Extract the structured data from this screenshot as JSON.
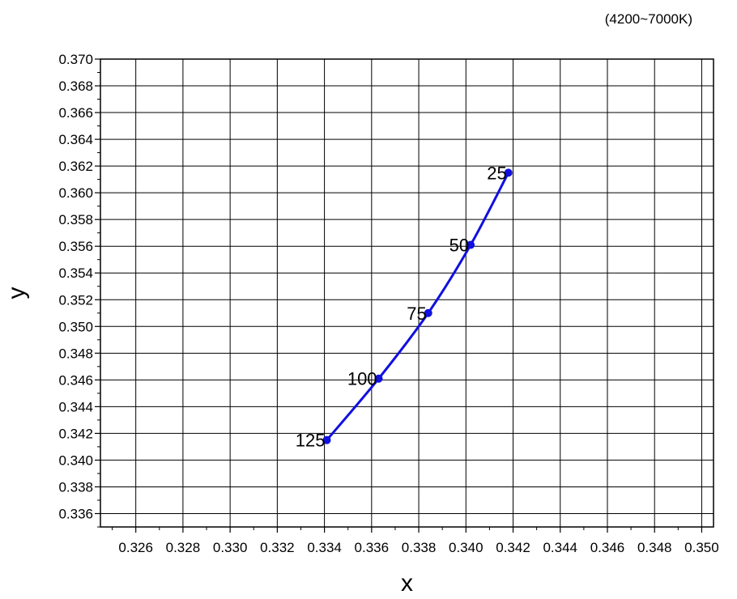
{
  "annotation": "(4200~7000K)",
  "chart_data": {
    "type": "line",
    "xlabel": "x",
    "ylabel": "y",
    "xlim": [
      0.3245,
      0.3505
    ],
    "ylim": [
      0.335,
      0.37
    ],
    "x_ticks": [
      0.326,
      0.328,
      0.33,
      0.332,
      0.334,
      0.336,
      0.338,
      0.34,
      0.342,
      0.344,
      0.346,
      0.348,
      0.35
    ],
    "x_tick_labels": [
      "0.326",
      "0.328",
      "0.330",
      "0.332",
      "0.334",
      "0.336",
      "0.338",
      "0.340",
      "0.342",
      "0.344",
      "0.346",
      "0.348",
      "0.350"
    ],
    "y_ticks": [
      0.336,
      0.338,
      0.34,
      0.342,
      0.344,
      0.346,
      0.348,
      0.35,
      0.352,
      0.354,
      0.356,
      0.358,
      0.36,
      0.362,
      0.364,
      0.366,
      0.368,
      0.37
    ],
    "y_tick_labels": [
      "0.336",
      "0.338",
      "0.340",
      "0.342",
      "0.344",
      "0.346",
      "0.348",
      "0.350",
      "0.352",
      "0.354",
      "0.356",
      "0.358",
      "0.360",
      "0.362",
      "0.364",
      "0.366",
      "0.368",
      "0.370"
    ],
    "grid": true,
    "series": [
      {
        "color": "#1010e0",
        "points": [
          {
            "x": 0.3341,
            "y": 0.3415,
            "label": "125"
          },
          {
            "x": 0.3363,
            "y": 0.3461,
            "label": "100"
          },
          {
            "x": 0.3384,
            "y": 0.351,
            "label": "75"
          },
          {
            "x": 0.3402,
            "y": 0.3561,
            "label": "50"
          },
          {
            "x": 0.3418,
            "y": 0.3615,
            "label": "25"
          }
        ]
      }
    ]
  }
}
